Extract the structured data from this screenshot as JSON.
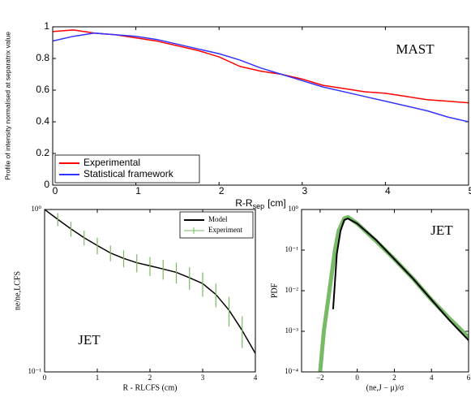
{
  "chart_data": [
    {
      "type": "line",
      "ylabel": "Profile of intensity normalised at separatrix value",
      "xlabel": [
        "R-R",
        "sep",
        "[cm]"
      ],
      "annotation": "MAST",
      "xlim": [
        0,
        5
      ],
      "ylim": [
        0,
        1
      ],
      "xticks": [
        0,
        1,
        2,
        3,
        4,
        5
      ],
      "yticks": [
        0,
        0.2,
        0.4,
        0.6,
        0.8,
        1
      ],
      "legend": "lower left",
      "series": [
        {
          "name": "Experimental",
          "color": "#ff0000",
          "x": [
            0,
            0.25,
            0.5,
            0.75,
            1,
            1.25,
            1.5,
            1.75,
            2,
            2.25,
            2.5,
            2.75,
            3,
            3.25,
            3.5,
            3.75,
            4,
            4.25,
            4.5,
            4.75,
            5
          ],
          "values": [
            0.97,
            0.98,
            0.96,
            0.95,
            0.93,
            0.91,
            0.88,
            0.85,
            0.81,
            0.75,
            0.72,
            0.7,
            0.67,
            0.63,
            0.61,
            0.59,
            0.58,
            0.56,
            0.54,
            0.53,
            0.52
          ]
        },
        {
          "name": "Statistical framework",
          "color": "#3333ff",
          "x": [
            0,
            0.25,
            0.5,
            0.75,
            1,
            1.25,
            1.5,
            1.75,
            2,
            2.25,
            2.5,
            2.75,
            3,
            3.25,
            3.5,
            3.75,
            4,
            4.25,
            4.5,
            4.75,
            5
          ],
          "values": [
            0.91,
            0.94,
            0.96,
            0.95,
            0.94,
            0.92,
            0.89,
            0.86,
            0.83,
            0.79,
            0.74,
            0.7,
            0.66,
            0.62,
            0.59,
            0.56,
            0.53,
            0.5,
            0.47,
            0.43,
            0.4
          ]
        }
      ]
    },
    {
      "type": "line",
      "ylabel": "ne/ne,LCFS",
      "xlabel": "R - RLCFS (cm)",
      "annotation": "JET",
      "xlim": [
        0,
        4
      ],
      "ylim": [
        0.1,
        1
      ],
      "ylog": true,
      "xticks": [
        0,
        1,
        2,
        3,
        4
      ],
      "yticks": [
        {
          "value": 0.1,
          "label": "10⁻¹"
        },
        {
          "value": 1,
          "label": "10⁰"
        }
      ],
      "legend": "upper right",
      "series": [
        {
          "name": "Model",
          "color": "#000000",
          "x": [
            0,
            0.25,
            0.5,
            0.75,
            1,
            1.25,
            1.5,
            1.75,
            2,
            2.25,
            2.5,
            2.75,
            3,
            3.25,
            3.5,
            3.75,
            4
          ],
          "values": [
            1.0,
            0.87,
            0.76,
            0.67,
            0.6,
            0.54,
            0.5,
            0.47,
            0.45,
            0.43,
            0.41,
            0.38,
            0.35,
            0.3,
            0.24,
            0.18,
            0.13
          ]
        },
        {
          "name": "Experiment",
          "color": "#77bb66",
          "x": [
            0,
            0.25,
            0.5,
            0.75,
            1,
            1.25,
            1.5,
            1.75,
            2,
            2.25,
            2.5,
            2.75,
            3,
            3.25,
            3.5,
            3.75,
            4
          ],
          "values": [
            1.0,
            0.87,
            0.76,
            0.67,
            0.6,
            0.54,
            0.5,
            0.47,
            0.45,
            0.43,
            0.41,
            0.38,
            0.35,
            0.3,
            0.24,
            0.18,
            0.13
          ],
          "errors": [
            0.06,
            0.08,
            0.08,
            0.07,
            0.07,
            0.06,
            0.06,
            0.06,
            0.06,
            0.06,
            0.06,
            0.06,
            0.06,
            0.05,
            0.05,
            0.04,
            0.03
          ]
        }
      ]
    },
    {
      "type": "line",
      "ylabel": "PDF",
      "xlabel": "(ne,J − μ)/σ",
      "annotation": "JET",
      "xlim": [
        -3,
        6
      ],
      "ylim": [
        0.0001,
        1
      ],
      "ylog": true,
      "xticks": [
        {
          "value": -2,
          "label": "−2"
        },
        0,
        2,
        4,
        6
      ],
      "yticks": [
        {
          "value": 0.0001,
          "label": "10⁻⁴"
        },
        {
          "value": 0.001,
          "label": "10⁻³"
        },
        {
          "value": 0.01,
          "label": "10⁻²"
        },
        {
          "value": 0.1,
          "label": "10⁻¹"
        },
        {
          "value": 1,
          "label": "10⁰"
        }
      ],
      "series": [
        {
          "color": "#77bb66",
          "width": 5,
          "x": [
            -2,
            -1.8,
            -1.5,
            -1.2,
            -1,
            -0.7,
            -0.5,
            0,
            1,
            2,
            3,
            4,
            5,
            5.5,
            6
          ],
          "values": [
            0.0001,
            0.001,
            0.01,
            0.1,
            0.3,
            0.6,
            0.65,
            0.45,
            0.17,
            0.06,
            0.02,
            0.006,
            0.002,
            0.0012,
            0.0007
          ]
        },
        {
          "color": "#000000",
          "width": 2,
          "x": [
            -1.3,
            -1.1,
            -0.9,
            -0.7,
            -0.5,
            0,
            1,
            2,
            3,
            4,
            5,
            6
          ],
          "values": [
            0.0035,
            0.08,
            0.3,
            0.55,
            0.6,
            0.45,
            0.18,
            0.06,
            0.02,
            0.006,
            0.0018,
            0.0006
          ]
        }
      ]
    }
  ]
}
